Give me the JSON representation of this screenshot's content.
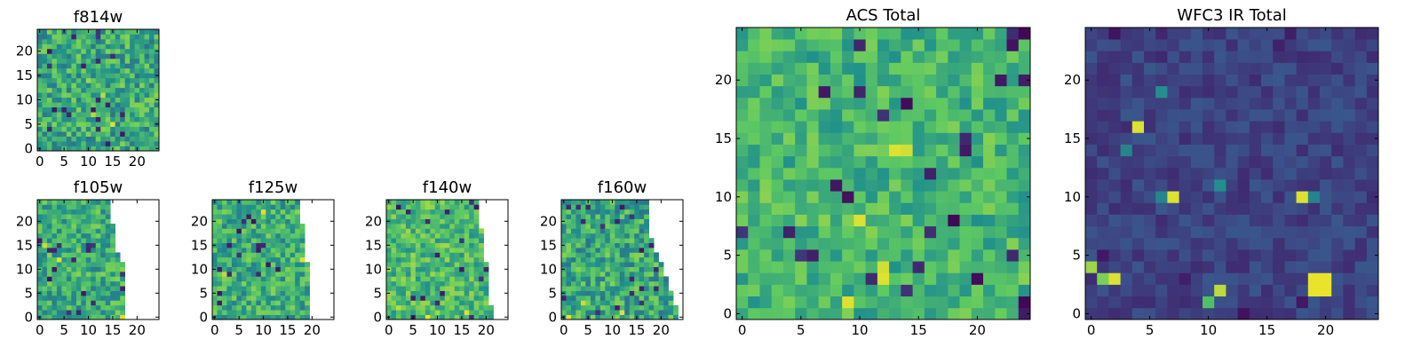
{
  "chart_data": [
    {
      "type": "heatmap",
      "title": "f814w",
      "grid_size": 25,
      "xticks": [
        0,
        5,
        10,
        15,
        20
      ],
      "yticks": [
        0,
        5,
        10,
        15,
        20
      ],
      "xlim": [
        -0.5,
        24.5
      ],
      "ylim": [
        -0.5,
        24.5
      ],
      "colormap": "viridis",
      "seed": 11,
      "mean": 0.6,
      "spread": 0.22,
      "cutoff_col": null,
      "hot_cells": [
        [
          10,
          14,
          0.85
        ],
        [
          13,
          11,
          0.9
        ],
        [
          15,
          5,
          0.95
        ],
        [
          11,
          7,
          0.88
        ]
      ]
    },
    {
      "type": "heatmap",
      "title": "f105w",
      "grid_size": 25,
      "xticks": [
        0,
        5,
        10,
        15,
        20
      ],
      "yticks": [
        0,
        5,
        10,
        15,
        20
      ],
      "xlim": [
        -0.5,
        24.5
      ],
      "ylim": [
        -0.5,
        24.5
      ],
      "colormap": "viridis",
      "seed": 23,
      "mean": 0.62,
      "spread": 0.2,
      "cutoff_col": [
        17,
        17,
        17,
        17,
        17,
        17,
        17,
        17,
        17,
        17,
        17,
        17,
        16,
        16,
        15,
        15,
        15,
        15,
        15,
        15,
        14,
        14,
        14,
        14,
        14
      ],
      "hot_cells": [
        [
          4,
          12,
          0.95
        ],
        [
          17,
          0,
          0.95
        ],
        [
          1,
          15,
          0.92
        ]
      ]
    },
    {
      "type": "heatmap",
      "title": "f125w",
      "grid_size": 25,
      "xticks": [
        0,
        5,
        10,
        15,
        20
      ],
      "yticks": [
        0,
        5,
        10,
        15,
        20
      ],
      "xlim": [
        -0.5,
        24.5
      ],
      "ylim": [
        -0.5,
        24.5
      ],
      "colormap": "viridis",
      "seed": 37,
      "mean": 0.62,
      "spread": 0.2,
      "cutoff_col": [
        19,
        19,
        19,
        19,
        19,
        19,
        19,
        19,
        19,
        19,
        19,
        19,
        18,
        18,
        18,
        18,
        18,
        18,
        18,
        18,
        17,
        17,
        17,
        17,
        17
      ],
      "hot_cells": [
        [
          10,
          22,
          0.95
        ],
        [
          18,
          12,
          0.95
        ],
        [
          2,
          9,
          0.9
        ]
      ]
    },
    {
      "type": "heatmap",
      "title": "f140w",
      "grid_size": 25,
      "xticks": [
        0,
        5,
        10,
        15,
        20
      ],
      "yticks": [
        0,
        5,
        10,
        15,
        20
      ],
      "xlim": [
        -0.5,
        24.5
      ],
      "ylim": [
        -0.5,
        24.5
      ],
      "colormap": "viridis",
      "seed": 53,
      "mean": 0.68,
      "spread": 0.18,
      "cutoff_col": [
        21,
        21,
        21,
        20,
        20,
        20,
        20,
        20,
        20,
        20,
        20,
        20,
        19,
        19,
        19,
        19,
        19,
        19,
        19,
        18,
        18,
        18,
        18,
        18,
        18
      ],
      "hot_cells": [
        [
          8,
          0,
          0.97
        ],
        [
          16,
          1,
          0.95
        ],
        [
          2,
          2,
          0.9
        ]
      ]
    },
    {
      "type": "heatmap",
      "title": "f160w",
      "grid_size": 25,
      "xticks": [
        0,
        5,
        10,
        15,
        20
      ],
      "yticks": [
        0,
        5,
        10,
        15,
        20
      ],
      "xlim": [
        -0.5,
        24.5
      ],
      "ylim": [
        -0.5,
        24.5
      ],
      "colormap": "viridis",
      "seed": 71,
      "mean": 0.6,
      "spread": 0.22,
      "cutoff_col": [
        23,
        23,
        23,
        22,
        22,
        22,
        21,
        21,
        21,
        20,
        20,
        20,
        19,
        19,
        18,
        18,
        18,
        17,
        17,
        17,
        17,
        17,
        17,
        17,
        17
      ],
      "hot_cells": [
        [
          1,
          0,
          0.97
        ],
        [
          12,
          1,
          0.95
        ],
        [
          4,
          3,
          0.92
        ]
      ]
    },
    {
      "type": "heatmap",
      "title": "ACS Total",
      "grid_size": 25,
      "xticks": [
        0,
        5,
        10,
        15,
        20
      ],
      "yticks": [
        0,
        5,
        10,
        15,
        20
      ],
      "xlim": [
        -0.5,
        24.5
      ],
      "ylim": [
        -0.5,
        24.5
      ],
      "colormap": "viridis",
      "seed": 89,
      "mean": 0.66,
      "spread": 0.16,
      "cutoff_col": null,
      "hot_cells": [
        [
          13,
          14,
          0.95
        ],
        [
          14,
          14,
          0.93
        ],
        [
          10,
          8,
          0.95
        ],
        [
          12,
          3,
          0.95
        ],
        [
          12,
          4,
          0.93
        ],
        [
          9,
          1,
          0.95
        ],
        [
          24,
          24,
          0.02
        ],
        [
          9,
          10,
          0.05
        ],
        [
          18,
          8,
          0.02
        ],
        [
          20,
          3,
          0.03
        ],
        [
          14,
          18,
          0.03
        ],
        [
          24,
          1,
          0.02
        ]
      ]
    },
    {
      "type": "heatmap",
      "title": "WFC3 IR Total",
      "grid_size": 25,
      "xticks": [
        0,
        5,
        10,
        15,
        20
      ],
      "yticks": [
        0,
        5,
        10,
        15,
        20
      ],
      "xlim": [
        -0.5,
        24.5
      ],
      "ylim": [
        -0.5,
        24.5
      ],
      "colormap": "viridis",
      "seed": 97,
      "mean": 0.2,
      "spread": 0.07,
      "cutoff_col": null,
      "hot_cells": [
        [
          4,
          16,
          0.95
        ],
        [
          7,
          10,
          0.95
        ],
        [
          18,
          10,
          0.95
        ],
        [
          19,
          2,
          0.97
        ],
        [
          20,
          2,
          0.97
        ],
        [
          19,
          3,
          0.97
        ],
        [
          20,
          3,
          0.97
        ],
        [
          0,
          4,
          0.85
        ],
        [
          1,
          3,
          0.8
        ],
        [
          2,
          3,
          0.95
        ],
        [
          11,
          2,
          0.9
        ],
        [
          10,
          1,
          0.7
        ],
        [
          6,
          19,
          0.5
        ],
        [
          3,
          14,
          0.45
        ],
        [
          6,
          10,
          0.45
        ],
        [
          11,
          11,
          0.5
        ],
        [
          19,
          10,
          0.45
        ]
      ]
    }
  ],
  "colors": {
    "viridis": [
      "#440154",
      "#3b528b",
      "#21908c",
      "#5ec962",
      "#fde725"
    ],
    "axis": "#000000",
    "background": "#ffffff"
  }
}
